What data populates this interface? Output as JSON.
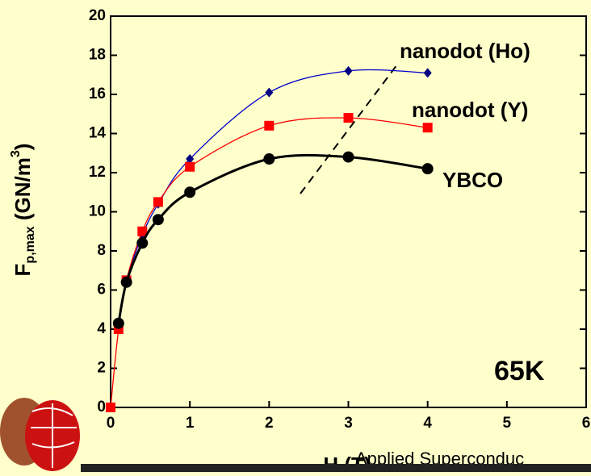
{
  "chart_data": {
    "type": "scatter",
    "y_label_parts": [
      "F",
      "p,max",
      " (GN/m",
      "3",
      ")"
    ],
    "x_label": "H (T)",
    "annotation": "65K",
    "footer": "Applied Superconduc",
    "xlim": [
      0,
      6
    ],
    "xticks": [
      0,
      1,
      2,
      3,
      4,
      5,
      6
    ],
    "ylim": [
      0,
      20
    ],
    "yticks": [
      0,
      2,
      4,
      6,
      8,
      10,
      12,
      14,
      16,
      18,
      20
    ],
    "series": [
      {
        "name": "nanodot (Ho)",
        "color": "#000080",
        "marker": "diamond",
        "x": [
          0.1,
          0.2,
          0.4,
          0.6,
          1,
          2,
          3,
          4
        ],
        "values": [
          4.3,
          6.5,
          8.8,
          10.4,
          12.7,
          16.1,
          17.2,
          17.1
        ]
      },
      {
        "name": "nanodot (Y)",
        "color": "#ff0000",
        "marker": "square",
        "x": [
          0,
          0.1,
          0.2,
          0.4,
          0.6,
          1,
          2,
          3,
          4
        ],
        "values": [
          0,
          4.0,
          6.5,
          9.0,
          10.5,
          12.3,
          14.4,
          14.8,
          14.3
        ]
      },
      {
        "name": "YBCO",
        "color": "#000000",
        "marker": "circle",
        "x": [
          0.1,
          0.2,
          0.4,
          0.6,
          1,
          2,
          3,
          4
        ],
        "values": [
          4.3,
          6.4,
          8.4,
          9.6,
          11.0,
          12.7,
          12.8,
          12.2
        ]
      }
    ]
  }
}
